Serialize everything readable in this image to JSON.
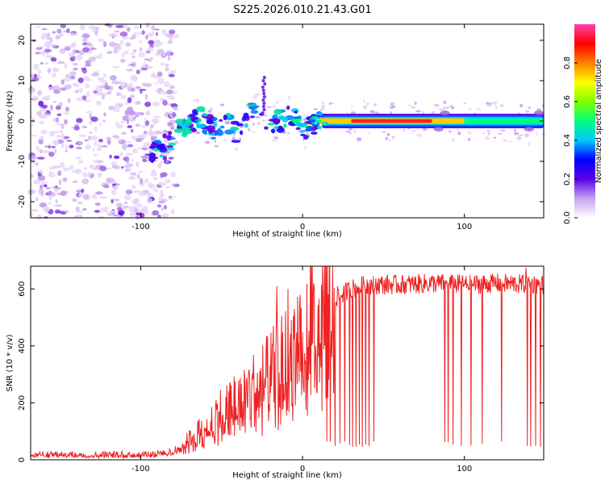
{
  "title": "S225.2026.010.21.43.G01",
  "chart_data": [
    {
      "type": "heatmap",
      "name": "spectrogram",
      "xlabel": "Height of straight line (km)",
      "ylabel": "Frequency (Hz)",
      "xlim": [
        -168,
        149
      ],
      "ylim": [
        -24,
        24
      ],
      "x_ticks": [
        -100,
        0,
        100
      ],
      "y_ticks": [
        -20,
        -10,
        0,
        10,
        20
      ],
      "x_tick_labels": [
        "-100",
        "0",
        "100"
      ],
      "y_tick_labels": [
        "-20",
        "-10",
        "0",
        "10",
        "20"
      ],
      "ridge": {
        "x": [
          -94,
          -88,
          -80,
          -72,
          -64,
          -56,
          -48,
          -40,
          -34,
          -28,
          -24,
          -20,
          -14,
          -8,
          -4,
          0,
          5,
          10,
          20,
          40,
          60,
          80,
          100,
          120,
          140,
          149
        ],
        "freq": [
          -9,
          -7,
          -4,
          -1,
          1,
          -2,
          0,
          -3,
          1,
          3,
          -2,
          0,
          0,
          1,
          0,
          -2,
          -1,
          0,
          0,
          0,
          0,
          0,
          0,
          0,
          -1,
          -1
        ]
      },
      "noise_region_x": [
        -168,
        -82
      ],
      "spike": {
        "x": -24,
        "freq_range": [
          2,
          11
        ]
      },
      "strong_band": {
        "x_range": [
          10,
          100
        ],
        "freq": 0,
        "peak_amplitude": 0.95
      },
      "colorbar": {
        "label": "Normalized spectral amplitude",
        "range": [
          0,
          1
        ],
        "ticks": [
          0.0,
          0.2,
          0.4,
          0.6,
          0.8
        ],
        "tick_labels": [
          "0.0",
          "0.2",
          "0.4",
          "0.6",
          "0.8"
        ],
        "colors": [
          "#ffffff",
          "#c7a2f0",
          "#5b00e8",
          "#0000ff",
          "#00c8ff",
          "#00ff7f",
          "#7fff00",
          "#ffff00",
          "#ff7f00",
          "#ff0000",
          "#ff40b0"
        ]
      }
    },
    {
      "type": "line",
      "name": "snr",
      "xlabel": "Height of straight line (km)",
      "ylabel": "SNR (10 * v/v)",
      "xlim": [
        -168,
        149
      ],
      "ylim": [
        0,
        680
      ],
      "x_ticks": [
        -100,
        0,
        100
      ],
      "y_ticks": [
        0,
        200,
        400,
        600
      ],
      "x_tick_labels": [
        "-100",
        "0",
        "100"
      ],
      "y_tick_labels": [
        "0",
        "200",
        "400",
        "600"
      ],
      "color": "#ee2222",
      "trend": {
        "x": [
          -168,
          -100,
          -85,
          -75,
          -65,
          -55,
          -45,
          -35,
          -25,
          -15,
          -8,
          0,
          10,
          20,
          30,
          40,
          60,
          80,
          100,
          120,
          149
        ],
        "snr": [
          20,
          20,
          25,
          45,
          90,
          150,
          190,
          230,
          270,
          320,
          380,
          440,
          520,
          570,
          600,
          615,
          615,
          620,
          615,
          620,
          615
        ]
      },
      "spikes": [
        {
          "x": -16,
          "snr": 610
        },
        {
          "x": -9,
          "snr": 600
        },
        {
          "x": 7,
          "snr": 620
        },
        {
          "x": 138,
          "snr": 675
        }
      ],
      "dropouts": [
        15,
        17,
        20,
        23,
        26,
        29,
        31,
        33,
        35,
        37,
        39,
        41,
        44,
        88,
        90,
        93,
        98,
        104,
        111,
        123,
        139,
        141,
        144,
        147
      ]
    }
  ]
}
